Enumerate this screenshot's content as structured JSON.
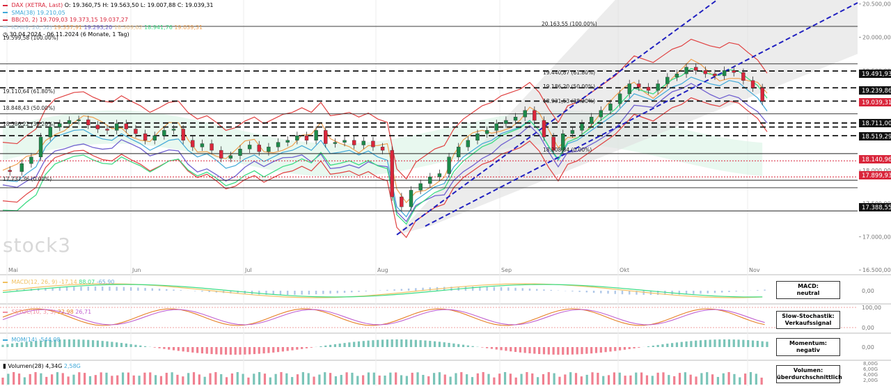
{
  "legend": {
    "main": {
      "name": "DAX (XETRA, Last)",
      "o": "O: 19.360,75",
      "h": "H: 19.563,50",
      "l": "L: 19.007,88",
      "c": "C: 19.039,31",
      "color": "#d9263b"
    },
    "sma": {
      "label": "SMA(38)",
      "value": "19.210,05",
      "color": "#3fa8d8"
    },
    "bb": {
      "label": "BB(20, 2)",
      "v1": "19.709,03",
      "v2": "19.373,15",
      "v3": "19.037,27",
      "color": "#d9263b"
    },
    "ichi": {
      "label": "ICHI(9, 26, 52)",
      "v1": "19.337,91",
      "v2": "19.293,20",
      "v3": "18.309,62",
      "v4": "18.941,76",
      "v5": "19.039,31",
      "colors": [
        "#f0a050",
        "#7060d0",
        "#f0a050",
        "#3ddc84",
        "#f0c060"
      ]
    },
    "range": "30.04.2024 - 06.11.2024",
    "period": "(6 Monate, 1 Tag)"
  },
  "logo": "stock3",
  "price_labels": [
    {
      "text": "19.491,93",
      "bg": "#111111"
    },
    {
      "text": "19.239,86",
      "bg": "#111111"
    },
    {
      "text": "19.039,31",
      "bg": "#d9263b"
    },
    {
      "text": "18.711,00",
      "bg": "#111111"
    },
    {
      "text": "18.519,29",
      "bg": "#111111"
    },
    {
      "text": "18.140,96",
      "bg": "#d9263b"
    },
    {
      "text": "17.899,93",
      "bg": "#d9263b"
    },
    {
      "text": "17.388,55",
      "bg": "#111111"
    }
  ],
  "fib_labels": [
    {
      "text": "20.163,55 (100.00%)"
    },
    {
      "text": "19.599,58 (100.00%)"
    },
    {
      "text": "19.110,64 (61.80%)"
    },
    {
      "text": "18.848,43 (50.00%)"
    },
    {
      "text": "18.586,22 (38.20%)"
    },
    {
      "text": "17.737,36 (0.00%)"
    },
    {
      "text": "19.440,87 (61.80%)"
    },
    {
      "text": "19.186,20 (50.00%)"
    },
    {
      "text": "18.931,53 (38.20%)"
    },
    {
      "text": "18.208,84 (0.00%)"
    }
  ],
  "sub_legends": {
    "macd": {
      "label": "MACD(12, 26, 9)",
      "v1": "-17,14",
      "v2": "88,07",
      "v3": "-65,90",
      "color": "#f0c060"
    },
    "sstoc": {
      "label": "SSTOC(10, 3, 3)",
      "v1": "22,98",
      "v2": "26,71",
      "color": "#f090a0"
    },
    "momo": {
      "label": "MOM(14)",
      "v1": "-544,08",
      "color": "#3fa8d8"
    },
    "vol": {
      "label": "Volumen(28)",
      "v1": "4,34G",
      "v2": "2,58G",
      "color": "#3fa8d8"
    }
  },
  "signals": [
    {
      "title": "MACD:",
      "value": "neutral"
    },
    {
      "title": "Slow-Stochastik:",
      "value": "Verkaufssignal"
    },
    {
      "title": "Momentum:",
      "value": "negativ"
    },
    {
      "title": "Volumen:",
      "value": "überdurchschnittlich"
    }
  ],
  "chart_data": {
    "type": "candlestick",
    "x_ticks": [
      "Mai",
      "Jun",
      "Jul",
      "Aug",
      "Sep",
      "Okt",
      "Nov"
    ],
    "y_ticks": [
      "20.500,00",
      "20.000,00",
      "19.500,00",
      "19.000,00",
      "18.500,00",
      "18.000,00",
      "17.500,00",
      "17.000,00",
      "16.500,00"
    ],
    "ylim": [
      16450,
      20560
    ],
    "macd_ticks": [
      "0,00"
    ],
    "stoch_ticks": [
      "100,00",
      "0,00"
    ],
    "mom_ticks": [
      "0,00"
    ],
    "vol_ticks": [
      "8,00G",
      "6,00G",
      "4,00G",
      "2,00G"
    ],
    "dashed_levels": [
      19491.93,
      19239.86,
      19039.31,
      18711.0,
      18650,
      18519.29
    ],
    "red_dotted_levels": [
      18140.96,
      17899.93
    ],
    "solid_levels": [
      20163.55,
      19599.58,
      18848.43,
      17737.36,
      17388.55,
      17850,
      18250
    ],
    "close_path": [
      [
        0,
        18000
      ],
      [
        6,
        17980
      ],
      [
        10,
        18100
      ],
      [
        14,
        18200
      ],
      [
        18,
        18500
      ],
      [
        22,
        18650
      ],
      [
        26,
        18700
      ],
      [
        30,
        18750
      ],
      [
        34,
        18760
      ],
      [
        38,
        18680
      ],
      [
        42,
        18620
      ],
      [
        46,
        18600
      ],
      [
        50,
        18700
      ],
      [
        54,
        18620
      ],
      [
        58,
        18550
      ],
      [
        62,
        18450
      ],
      [
        66,
        18520
      ],
      [
        70,
        18600
      ],
      [
        74,
        18620
      ],
      [
        78,
        18450
      ],
      [
        82,
        18350
      ],
      [
        86,
        18400
      ],
      [
        90,
        18300
      ],
      [
        94,
        18180
      ],
      [
        98,
        18220
      ],
      [
        102,
        18320
      ],
      [
        106,
        18380
      ],
      [
        110,
        18280
      ],
      [
        114,
        18350
      ],
      [
        118,
        18420
      ],
      [
        122,
        18450
      ],
      [
        126,
        18520
      ],
      [
        130,
        18450
      ],
      [
        134,
        18600
      ],
      [
        138,
        18400
      ],
      [
        142,
        18420
      ],
      [
        146,
        18450
      ],
      [
        150,
        18380
      ],
      [
        154,
        18440
      ],
      [
        158,
        18350
      ],
      [
        162,
        18300
      ],
      [
        166,
        17600
      ],
      [
        170,
        17450
      ],
      [
        174,
        17700
      ],
      [
        178,
        17800
      ],
      [
        182,
        17900
      ],
      [
        186,
        17950
      ],
      [
        190,
        18200
      ],
      [
        194,
        18350
      ],
      [
        198,
        18450
      ],
      [
        202,
        18550
      ],
      [
        206,
        18600
      ],
      [
        210,
        18700
      ],
      [
        214,
        18750
      ],
      [
        218,
        18800
      ],
      [
        222,
        18900
      ],
      [
        226,
        18750
      ],
      [
        230,
        18500
      ],
      [
        234,
        18300
      ],
      [
        238,
        18550
      ],
      [
        242,
        18600
      ],
      [
        246,
        18700
      ],
      [
        250,
        18800
      ],
      [
        254,
        18900
      ],
      [
        258,
        19000
      ],
      [
        262,
        19150
      ],
      [
        266,
        19300
      ],
      [
        270,
        19250
      ],
      [
        274,
        19200
      ],
      [
        278,
        19300
      ],
      [
        282,
        19400
      ],
      [
        286,
        19450
      ],
      [
        290,
        19550
      ],
      [
        294,
        19500
      ],
      [
        298,
        19450
      ],
      [
        302,
        19420
      ],
      [
        306,
        19500
      ],
      [
        310,
        19470
      ],
      [
        314,
        19350
      ],
      [
        318,
        19239
      ],
      [
        322,
        19039
      ]
    ]
  }
}
